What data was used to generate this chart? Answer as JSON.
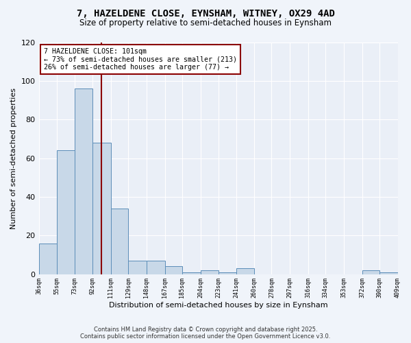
{
  "title1": "7, HAZELDENE CLOSE, EYNSHAM, WITNEY, OX29 4AD",
  "title2": "Size of property relative to semi-detached houses in Eynsham",
  "xlabel": "Distribution of semi-detached houses by size in Eynsham",
  "ylabel": "Number of semi-detached properties",
  "bar_color": "#c8d8e8",
  "bar_edge_color": "#5b8db8",
  "vline_x": 101,
  "vline_color": "#8b0000",
  "annotation_title": "7 HAZELDENE CLOSE: 101sqm",
  "annotation_line1": "← 73% of semi-detached houses are smaller (213)",
  "annotation_line2": "26% of semi-detached houses are larger (77) →",
  "annotation_box_color": "#ffffff",
  "annotation_box_edge": "#8b0000",
  "bins": [
    36,
    55,
    73,
    92,
    111,
    129,
    148,
    167,
    185,
    204,
    223,
    241,
    260,
    278,
    297,
    316,
    334,
    353,
    372,
    390,
    409
  ],
  "counts": [
    16,
    64,
    96,
    68,
    34,
    7,
    7,
    4,
    1,
    2,
    1,
    3,
    0,
    0,
    0,
    0,
    0,
    0,
    2,
    1
  ],
  "tick_labels": [
    "36sqm",
    "55sqm",
    "73sqm",
    "92sqm",
    "111sqm",
    "129sqm",
    "148sqm",
    "167sqm",
    "185sqm",
    "204sqm",
    "223sqm",
    "241sqm",
    "260sqm",
    "278sqm",
    "297sqm",
    "316sqm",
    "334sqm",
    "353sqm",
    "372sqm",
    "390sqm",
    "409sqm"
  ],
  "ylim": [
    0,
    120
  ],
  "yticks": [
    0,
    20,
    40,
    60,
    80,
    100,
    120
  ],
  "bg_color": "#eaeff7",
  "fig_bg_color": "#f0f4fa",
  "footer1": "Contains HM Land Registry data © Crown copyright and database right 2025.",
  "footer2": "Contains public sector information licensed under the Open Government Licence v3.0."
}
